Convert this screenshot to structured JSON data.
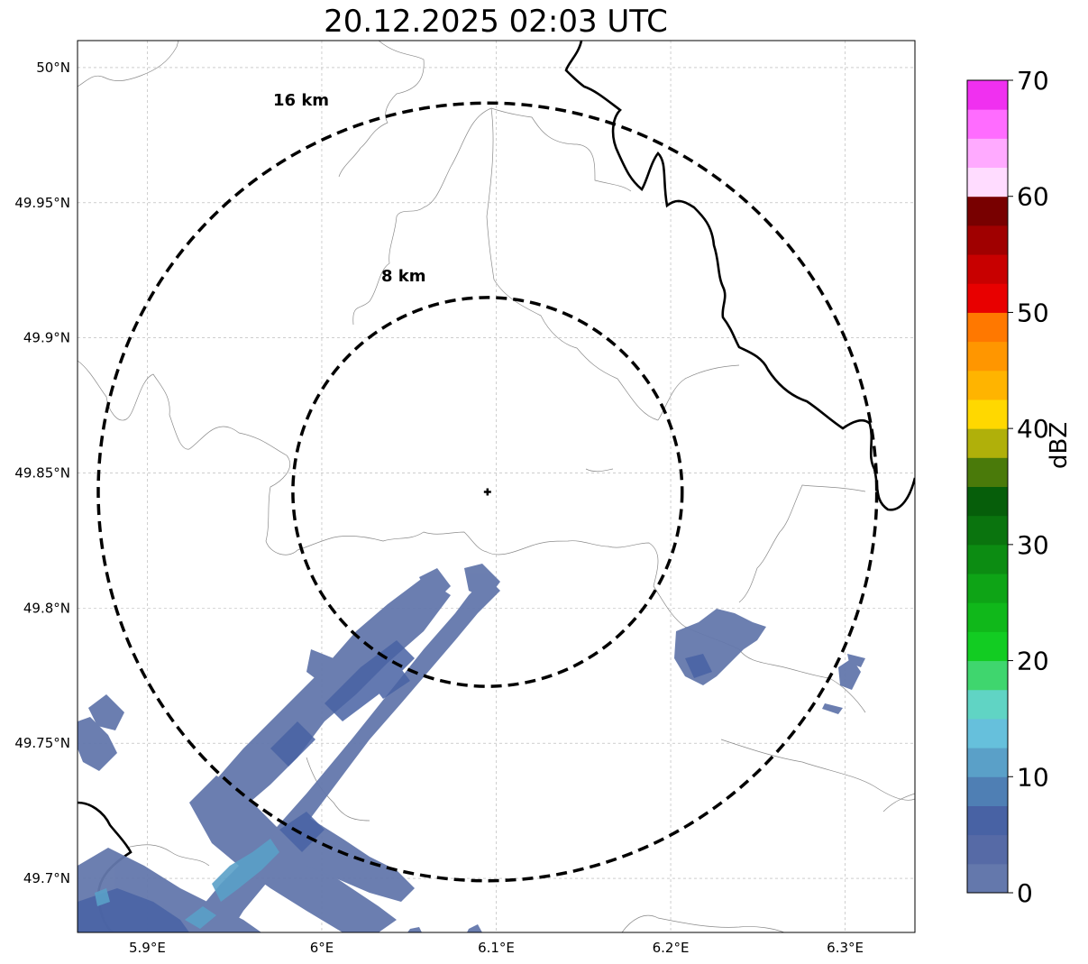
{
  "title": "20.12.2025 02:03 UTC",
  "map": {
    "lon_ticks": [
      "5.9°E",
      "6°E",
      "6.1°E",
      "6.2°E",
      "6.3°E"
    ],
    "lat_ticks": [
      "50°N",
      "49.95°N",
      "49.9°N",
      "49.85°N",
      "49.8°N",
      "49.75°N",
      "49.7°N"
    ],
    "lon_values": [
      5.9,
      6.0,
      6.1,
      6.2,
      6.3
    ],
    "lat_values": [
      50.0,
      49.95,
      49.9,
      49.85,
      49.8,
      49.75,
      49.7
    ],
    "extent": {
      "lon_min": 5.86,
      "lon_max": 6.34,
      "lat_min": 49.68,
      "lat_max": 50.01
    },
    "radar_site": {
      "lon": 6.095,
      "lat": 49.843
    },
    "range_rings": [
      {
        "label": "8 km",
        "radius_km": 8
      },
      {
        "label": "16 km",
        "radius_km": 16
      }
    ],
    "grid": true
  },
  "colorbar": {
    "label": "dBZ",
    "ticks": [
      "0",
      "10",
      "20",
      "30",
      "40",
      "50",
      "60",
      "70"
    ],
    "colors": [
      "#6478ac",
      "#566aa6",
      "#4862a4",
      "#4f7fb4",
      "#5aa0c8",
      "#66c0dc",
      "#60d4c4",
      "#3fd66e",
      "#12cc22",
      "#10b81a",
      "#0ea416",
      "#0c8c12",
      "#0a740e",
      "#065e0a",
      "#4a7a0a",
      "#b0b00a",
      "#ffd800",
      "#ffb400",
      "#ff9600",
      "#ff7800",
      "#e80000",
      "#c80000",
      "#a00000",
      "#780000",
      "#ffdcff",
      "#ffaaff",
      "#ff6cff",
      "#f030f0"
    ]
  }
}
